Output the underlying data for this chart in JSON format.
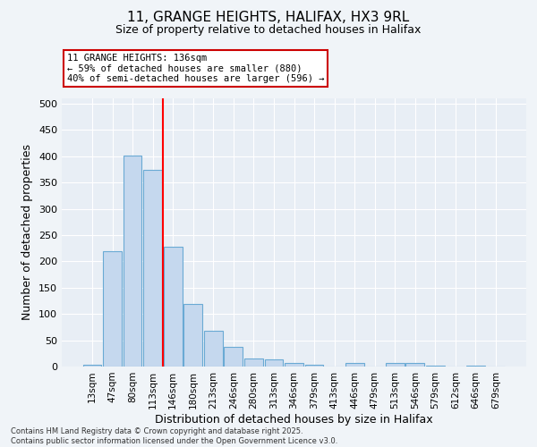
{
  "title_line1": "11, GRANGE HEIGHTS, HALIFAX, HX3 9RL",
  "title_line2": "Size of property relative to detached houses in Halifax",
  "xlabel": "Distribution of detached houses by size in Halifax",
  "ylabel": "Number of detached properties",
  "categories": [
    "13sqm",
    "47sqm",
    "80sqm",
    "113sqm",
    "146sqm",
    "180sqm",
    "213sqm",
    "246sqm",
    "280sqm",
    "313sqm",
    "346sqm",
    "379sqm",
    "413sqm",
    "446sqm",
    "479sqm",
    "513sqm",
    "546sqm",
    "579sqm",
    "612sqm",
    "646sqm",
    "679sqm"
  ],
  "values": [
    3,
    220,
    402,
    374,
    228,
    119,
    68,
    38,
    16,
    13,
    7,
    3,
    0,
    6,
    0,
    6,
    6,
    1,
    0,
    1,
    0
  ],
  "bar_color": "#c5d8ee",
  "bar_edge_color": "#6aaad4",
  "red_line_index": 3.5,
  "annotation_text": "11 GRANGE HEIGHTS: 136sqm\n← 59% of detached houses are smaller (880)\n40% of semi-detached houses are larger (596) →",
  "annotation_box_color": "#ffffff",
  "annotation_box_edge": "#cc0000",
  "ylim": [
    0,
    510
  ],
  "yticks": [
    0,
    50,
    100,
    150,
    200,
    250,
    300,
    350,
    400,
    450,
    500
  ],
  "plot_bg": "#e8eef5",
  "fig_bg": "#f0f4f8",
  "grid_color": "#ffffff",
  "footer_line1": "Contains HM Land Registry data © Crown copyright and database right 2025.",
  "footer_line2": "Contains public sector information licensed under the Open Government Licence v3.0."
}
